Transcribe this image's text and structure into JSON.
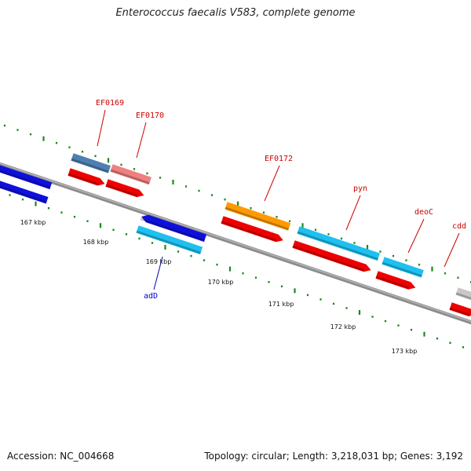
{
  "title": "Enterococcus faecalis V583, complete genome",
  "footer": {
    "accession": "Accession: NC_004668",
    "topology": "Topology: circular; Length: 3,218,031 bp; Genes: 3,192"
  },
  "colors": {
    "backbone": "#8c8c8c",
    "ticks": "#1a8a1a",
    "label_plus": "#cc0000",
    "label_minus": "#0000cc"
  },
  "axis": {
    "unit": "kbp",
    "ticks": [
      {
        "kbp": 167,
        "label": "167 kbp"
      },
      {
        "kbp": 168,
        "label": "168 kbp"
      },
      {
        "kbp": 169,
        "label": "169 kbp"
      },
      {
        "kbp": 170,
        "label": "170 kbp"
      },
      {
        "kbp": 171,
        "label": "171 kbp"
      },
      {
        "kbp": 172,
        "label": "172 kbp"
      },
      {
        "kbp": 173,
        "label": "173 kbp"
      }
    ]
  },
  "genes": [
    {
      "name": "EF0169",
      "strand": "plus",
      "color": "#4f7fb0"
    },
    {
      "name": "EF0170",
      "strand": "plus",
      "color": "#ef8080"
    },
    {
      "name": "EF0172",
      "strand": "plus",
      "color": "#ff9900"
    },
    {
      "name": "pyn",
      "strand": "plus",
      "color": "#1ec0f0"
    },
    {
      "name": "deoC",
      "strand": "plus",
      "color": "#1ec0f0"
    },
    {
      "name": "cdd",
      "strand": "plus",
      "color": "#c8c8c8"
    },
    {
      "name": "adD",
      "strand": "minus",
      "color": "#1ec0f0"
    }
  ]
}
